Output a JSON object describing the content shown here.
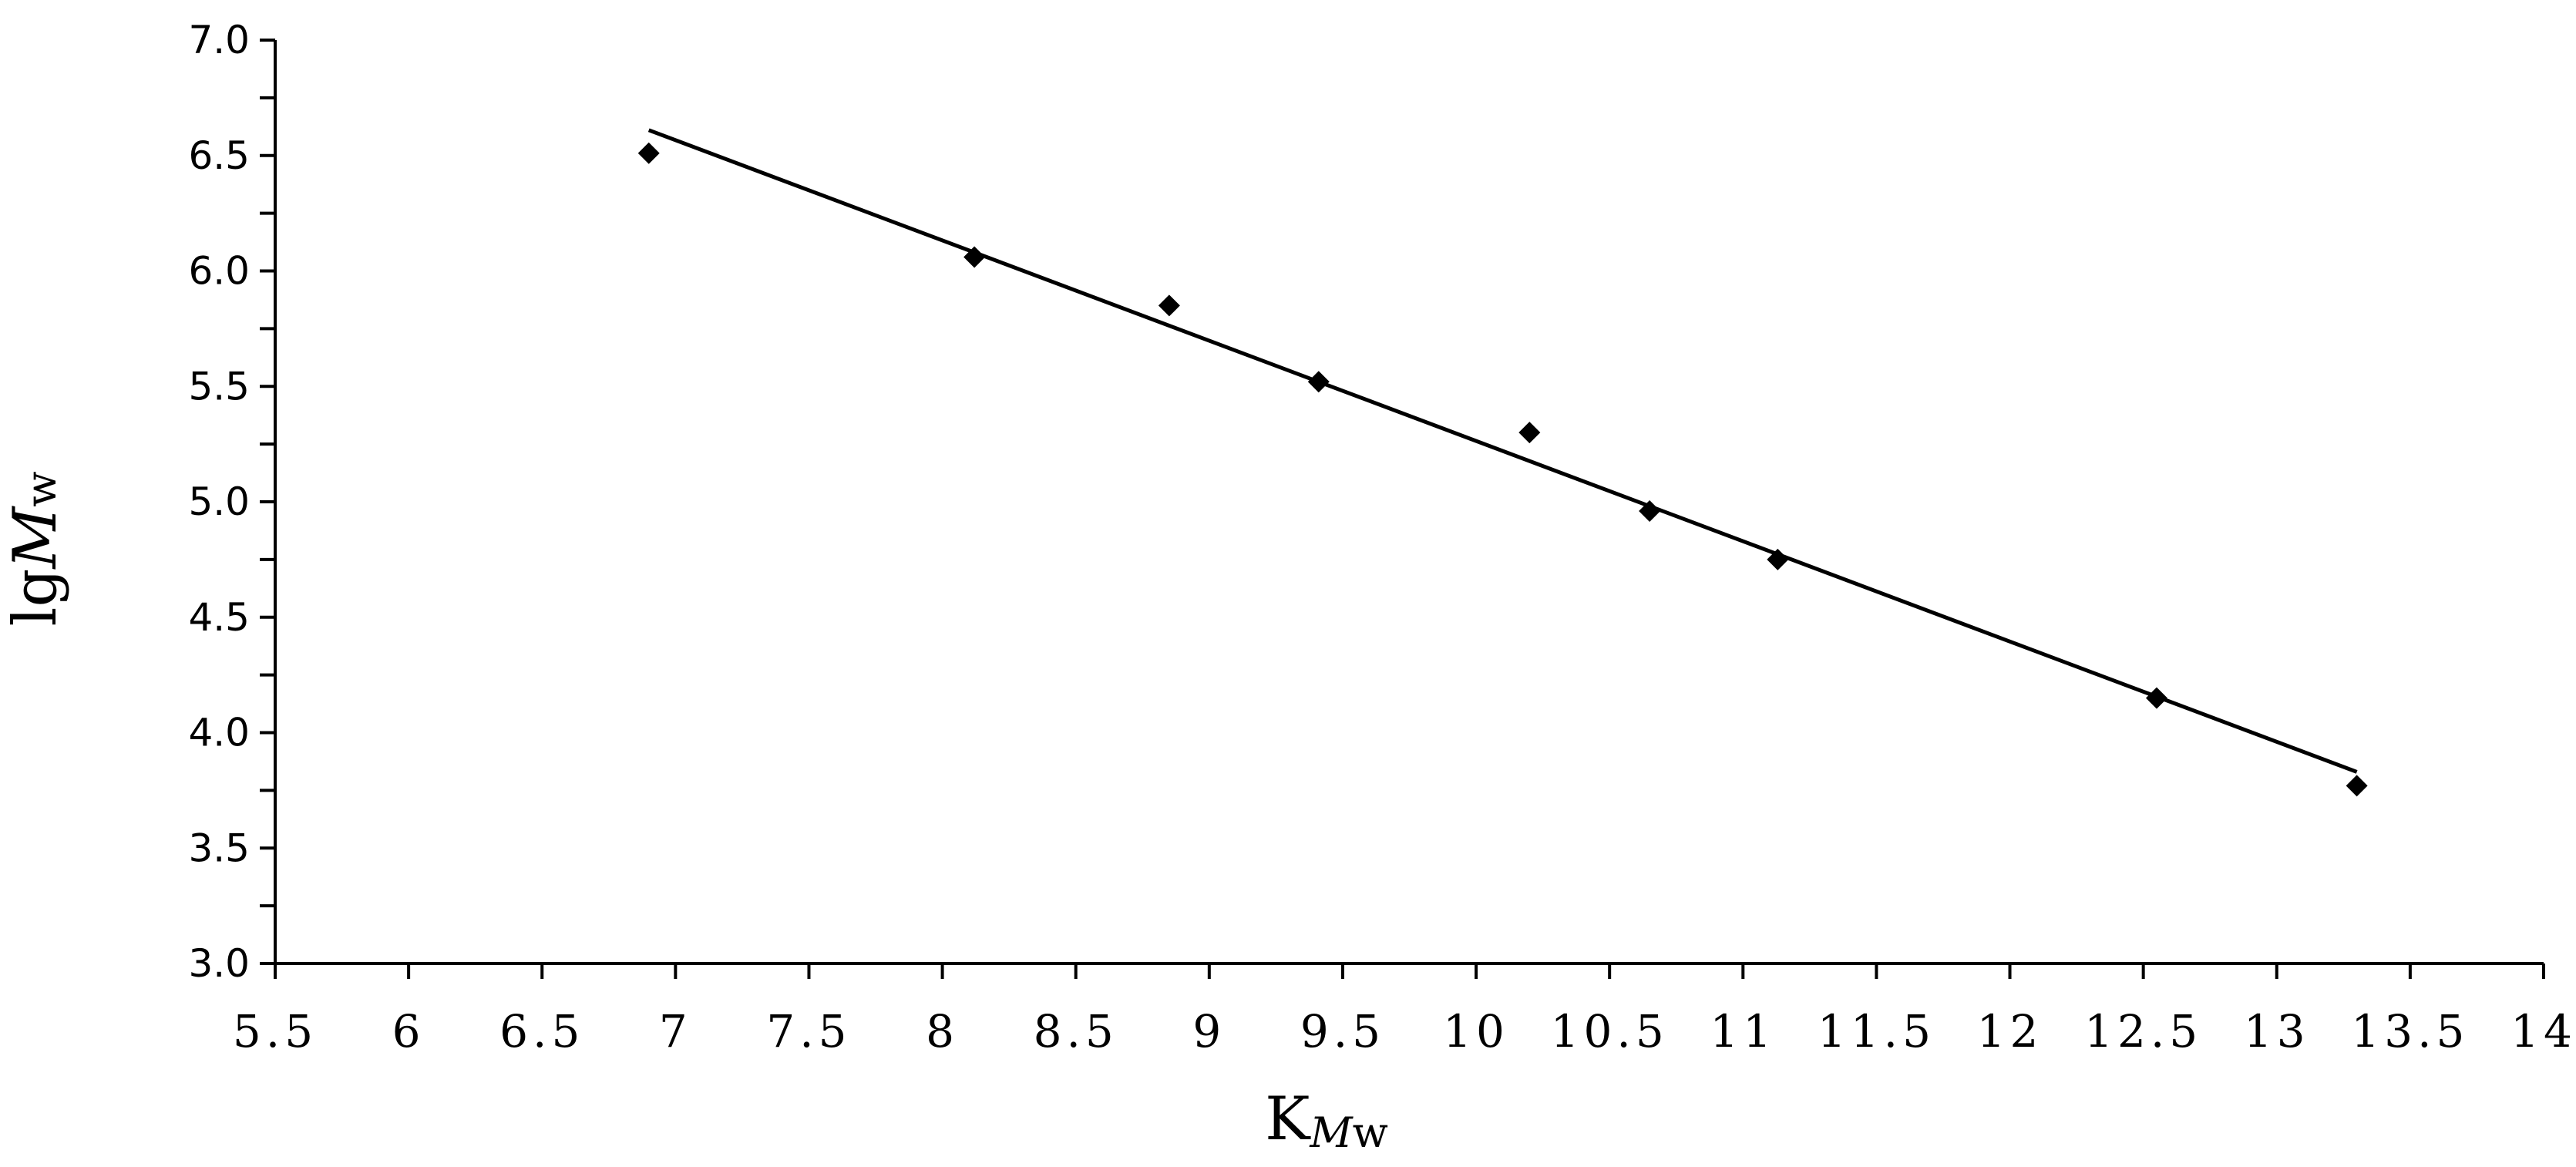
{
  "chart_data": {
    "type": "scatter",
    "title": "",
    "xlabel": {
      "main": "K",
      "sub_italic": "M",
      "sub": "w"
    },
    "ylabel": {
      "main": "lg",
      "italic": "M",
      "sub": "w"
    },
    "xlim": [
      5.5,
      14
    ],
    "ylim": [
      3.0,
      7.0
    ],
    "x_ticks": [
      5.5,
      6,
      6.5,
      7,
      7.5,
      8,
      8.5,
      9,
      9.5,
      10,
      10.5,
      11,
      11.5,
      12,
      12.5,
      13,
      13.5,
      14
    ],
    "x_tick_labels": [
      "5.5",
      "6",
      "6.5",
      "7",
      "7.5",
      "8",
      "8.5",
      "9",
      "9.5",
      "10",
      "10.5",
      "11",
      "11.5",
      "12",
      "12.5",
      "13",
      "13.5",
      "14"
    ],
    "y_ticks": [
      3.0,
      3.5,
      4.0,
      4.5,
      5.0,
      5.5,
      6.0,
      6.5,
      7.0
    ],
    "y_tick_labels": [
      "3.0",
      "3.5",
      "4.0",
      "4.5",
      "5.0",
      "5.5",
      "6.0",
      "6.5",
      "7.0"
    ],
    "grid": false,
    "legend": "none",
    "marker": "diamond",
    "color": "#000000",
    "points": [
      {
        "x": 6.9,
        "y": 6.51
      },
      {
        "x": 8.12,
        "y": 6.06
      },
      {
        "x": 8.85,
        "y": 5.85
      },
      {
        "x": 9.41,
        "y": 5.52
      },
      {
        "x": 10.2,
        "y": 5.3
      },
      {
        "x": 10.65,
        "y": 4.96
      },
      {
        "x": 11.13,
        "y": 4.75
      },
      {
        "x": 12.55,
        "y": 4.15
      },
      {
        "x": 13.3,
        "y": 3.77
      }
    ],
    "trendline": {
      "type": "linear",
      "x_start": 6.9,
      "y_start": 6.61,
      "x_end": 13.3,
      "y_end": 3.83
    }
  }
}
